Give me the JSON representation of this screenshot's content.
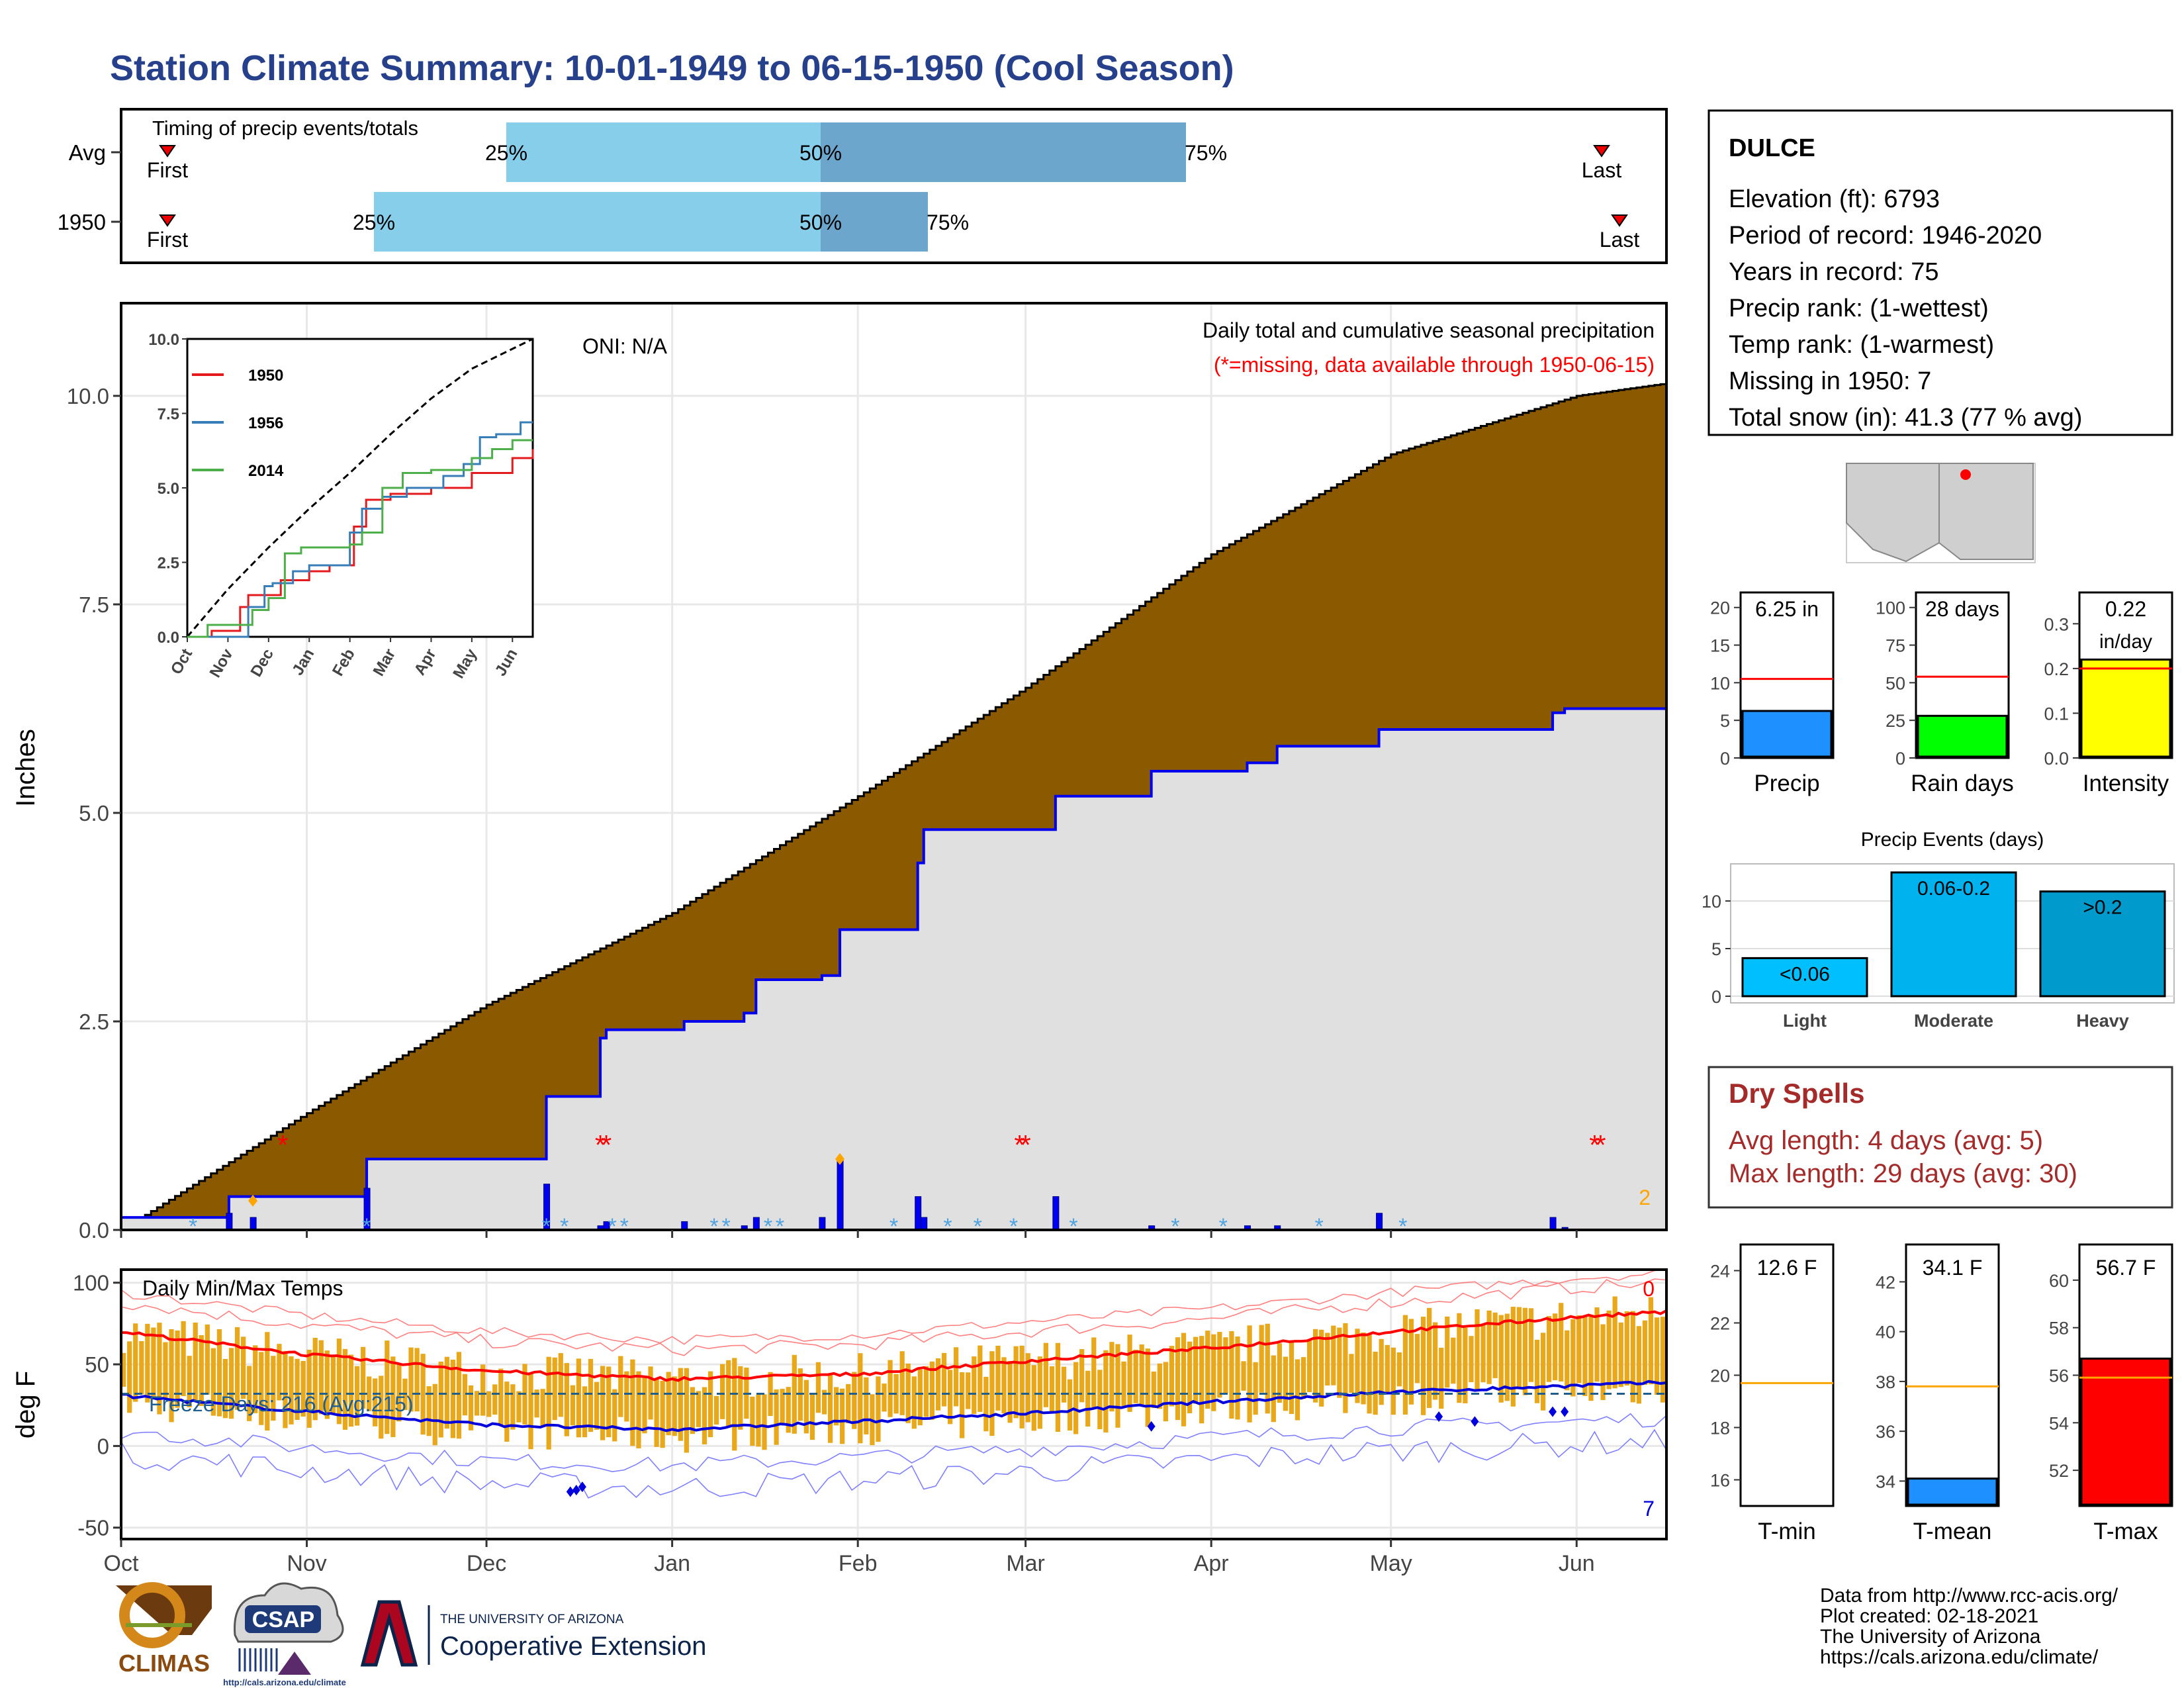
{
  "title": "Station Climate Summary: 10-01-1949 to 06-15-1950 (Cool Season)",
  "colors": {
    "title": "#27408b",
    "bar_light": "#87ceeb",
    "bar_dark": "#6ca6cd",
    "precip_fill": "#8b5a00",
    "grid": "#e8e8e8",
    "gray_fill": "#e0e0e0",
    "dry_text": "#a52a2a",
    "orange": "#ffa500",
    "red": "#ff0000",
    "blue": "#0000ff",
    "green": "#00ff00",
    "yellow": "#ffff00",
    "mean_blue": "#1e90ff"
  },
  "timing": {
    "label": "Timing of precip events/totals",
    "rows": [
      {
        "name": "Avg",
        "first": "First",
        "p25": "25%",
        "p50": "50%",
        "p75": "75%",
        "last": "Last"
      },
      {
        "name": "1950",
        "first": "First",
        "p25": "25%",
        "p50": "50%",
        "p75": "75%",
        "last": "Last"
      }
    ]
  },
  "precip": {
    "ylabel": "Inches",
    "yticks": [
      "0.0",
      "2.5",
      "5.0",
      "7.5",
      "10.0"
    ],
    "oni": "ONI: N/A",
    "caption": "Daily total and cumulative seasonal precipitation",
    "missing_note": "(*=missing, data available through 1950-06-15)",
    "corner_count": "2"
  },
  "inset": {
    "yticks": [
      "0.0",
      "2.5",
      "5.0",
      "7.5",
      "10.0"
    ],
    "xticks": [
      "Oct",
      "Nov",
      "Dec",
      "Jan",
      "Feb",
      "Mar",
      "Apr",
      "May",
      "Jun"
    ],
    "legend": [
      "1950",
      "1956",
      "2014"
    ]
  },
  "temps": {
    "ylabel": "deg F",
    "label": "Daily Min/Max Temps",
    "freeze": "Freeze Days: 216 (Avg:215)",
    "yticks": [
      "-50",
      "0",
      "50",
      "100"
    ],
    "top_count": "0",
    "bottom_count": "7"
  },
  "months": [
    "Oct",
    "Nov",
    "Dec",
    "Jan",
    "Feb",
    "Mar",
    "Apr",
    "May",
    "Jun"
  ],
  "station": {
    "name": "DULCE",
    "lines": [
      "Elevation (ft): 6793",
      "Period of record: 1946-2020",
      "Years in record: 75",
      "Precip rank:  (1-wettest)",
      "Temp rank:  (1-warmest)",
      "Missing in 1950: 7",
      "Total snow (in): 41.3 (77 % avg)"
    ]
  },
  "mini": {
    "precip": {
      "value_label": "6.25 in",
      "label": "Precip",
      "value": 6.25,
      "avg": 10.5,
      "ticks": [
        "0",
        "5",
        "10",
        "15",
        "20"
      ]
    },
    "rain": {
      "value_label": "28 days",
      "label": "Rain days",
      "value": 28,
      "avg": 54,
      "ticks": [
        "0",
        "25",
        "50",
        "75",
        "100"
      ]
    },
    "intensity": {
      "value_label_1": "0.22",
      "value_label_2": "in/day",
      "label": "Intensity",
      "value": 0.22,
      "avg": 0.2,
      "ticks": [
        "0.0",
        "0.1",
        "0.2",
        "0.3"
      ]
    }
  },
  "events": {
    "title": "Precip Events (days)",
    "ticks": [
      "0",
      "5",
      "10"
    ],
    "bars": [
      {
        "category": "Light",
        "value": 4,
        "label": "<0.06"
      },
      {
        "category": "Moderate",
        "value": 13,
        "label": "0.06-0.2"
      },
      {
        "category": "Heavy",
        "value": 11,
        "label": ">0.2"
      }
    ]
  },
  "dry": {
    "title": "Dry Spells",
    "avg": "Avg length: 4 days (avg: 5)",
    "max": "Max length: 29 days (avg: 30)"
  },
  "tpanels": {
    "tmin": {
      "value_label": "12.6 F",
      "label": "T-min",
      "ticks": [
        "16",
        "18",
        "20",
        "22",
        "24"
      ],
      "value": 12.6,
      "avg": 19.7
    },
    "tmean": {
      "value_label": "34.1 F",
      "label": "T-mean",
      "ticks": [
        "34",
        "36",
        "38",
        "40",
        "42"
      ],
      "value": 34.1,
      "avg": 37.8
    },
    "tmax": {
      "value_label": "56.7 F",
      "label": "T-max",
      "ticks": [
        "52",
        "54",
        "56",
        "58",
        "60"
      ],
      "value": 56.7,
      "avg": 55.9
    }
  },
  "footer": {
    "lines": [
      "Data from http://www.rcc-acis.org/",
      "Plot created: 02-18-2021",
      "The University of Arizona",
      "https://cals.arizona.edu/climate/"
    ],
    "climas": "CLIMAS",
    "csap": "CSAP",
    "csap_url": "http://cals.arizona.edu/climate",
    "ua_small": "THE UNIVERSITY OF ARIZONA",
    "ua_big": "Cooperative Extension"
  },
  "chart_data": [
    {
      "type": "area",
      "title": "Daily total and cumulative seasonal precipitation",
      "ylabel": "Inches",
      "ylim": [
        0,
        11
      ],
      "series": [
        {
          "name": "Average cumulative",
          "x": [
            "Oct 1",
            "Nov 1",
            "Dec 1",
            "Jan 1",
            "Feb 1",
            "Mar 1",
            "Apr 1",
            "May 1",
            "Jun 1",
            "Jun 15"
          ],
          "values": [
            0,
            1.4,
            2.7,
            3.8,
            5.2,
            6.5,
            8.1,
            9.3,
            10.0,
            10.15
          ]
        },
        {
          "name": "1950 cumulative",
          "x": [
            "Oct 1",
            "Oct 20",
            "Nov 11",
            "Dec 11",
            "Dec 21",
            "Jan 11",
            "Jan 26",
            "Feb 10",
            "Mar 1",
            "Apr 1",
            "May 1",
            "Jun 3",
            "Jun 15"
          ],
          "values": [
            0.15,
            0.4,
            0.85,
            1.6,
            2.4,
            2.4,
            3.6,
            4.8,
            5.2,
            5.5,
            6.0,
            6.2,
            6.25
          ]
        }
      ]
    },
    {
      "type": "bar",
      "title": "Daily Min/Max Temps",
      "ylabel": "deg F",
      "ylim": [
        -50,
        100
      ],
      "series": [
        {
          "name": "Average max",
          "x": [
            "Oct",
            "Nov",
            "Dec",
            "Jan",
            "Feb",
            "Mar",
            "Apr",
            "May",
            "Jun"
          ],
          "values": [
            70,
            56,
            46,
            41,
            44,
            52,
            60,
            70,
            79
          ]
        },
        {
          "name": "Average min",
          "x": [
            "Oct",
            "Nov",
            "Dec",
            "Jan",
            "Feb",
            "Mar",
            "Apr",
            "May",
            "Jun"
          ],
          "values": [
            31,
            21,
            13,
            10,
            15,
            20,
            27,
            33,
            37
          ]
        }
      ]
    },
    {
      "type": "bar",
      "title": "Precip Events (days)",
      "categories": [
        "Light",
        "Moderate",
        "Heavy"
      ],
      "values": [
        4,
        13,
        11
      ]
    }
  ]
}
